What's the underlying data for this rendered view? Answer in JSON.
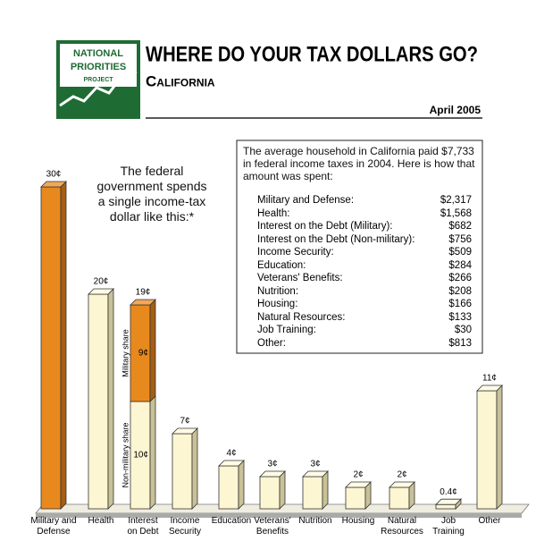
{
  "header": {
    "logo": [
      "NATIONAL",
      "PRIORITIES",
      "PROJECT"
    ],
    "title": "WHERE DO YOUR TAX DOLLARS GO?",
    "subtitle": "California",
    "date": "April 2005"
  },
  "annotation": "The federal\ngovernment spends\na single income-tax\ndollar like this:*",
  "spending_table": {
    "intro": "The average household in California paid $7,733 in federal income taxes in 2004.  Here is how that amount was spent:",
    "rows": [
      {
        "label": "Military and Defense:",
        "amount": "$2,317"
      },
      {
        "label": "Health:",
        "amount": "$1,568"
      },
      {
        "label": "Interest on the Debt (Military):",
        "amount": "$682"
      },
      {
        "label": "Interest on the Debt (Non-military):",
        "amount": "$756"
      },
      {
        "label": "Income Security:",
        "amount": "$509"
      },
      {
        "label": "Education:",
        "amount": "$284"
      },
      {
        "label": "Veterans' Benefits:",
        "amount": "$266"
      },
      {
        "label": "Nutrition:",
        "amount": "$208"
      },
      {
        "label": "Housing:",
        "amount": "$166"
      },
      {
        "label": "Natural Resources:",
        "amount": "$133"
      },
      {
        "label": "Job Training:",
        "amount": "$30"
      },
      {
        "label": "Other:",
        "amount": "$813"
      }
    ]
  },
  "chart_data": {
    "type": "bar3d",
    "categories": [
      "Military and\nDefense",
      "Health",
      "Interest\non Debt",
      "Income\nSecurity",
      "Education",
      "Veterans'\nBenefits",
      "Nutrition",
      "Housing",
      "Natural\nResources",
      "Job\nTraining",
      "Other"
    ],
    "values": [
      30,
      20,
      19,
      7,
      4,
      3,
      3,
      2,
      2,
      0.4,
      11
    ],
    "value_labels": [
      "30¢",
      "20¢",
      "19¢",
      "7¢",
      "4¢",
      "3¢",
      "3¢",
      "2¢",
      "2¢",
      "0.4¢",
      "11¢"
    ],
    "colors": [
      "#e8891e",
      "#fdf6d2",
      null,
      "#fdf6d2",
      "#fdf6d2",
      "#fdf6d2",
      "#fdf6d2",
      "#fdf6d2",
      "#fdf6d2",
      "#fdf6d2",
      "#fdf6d2"
    ],
    "segments": {
      "category": 2,
      "parts": [
        {
          "name": "Non-military share",
          "value": 10,
          "value_label": "10¢",
          "color": "#fdf6d2"
        },
        {
          "name": "Military share",
          "value": 9,
          "value_label": "9¢",
          "color": "#e8891e"
        }
      ]
    }
  }
}
